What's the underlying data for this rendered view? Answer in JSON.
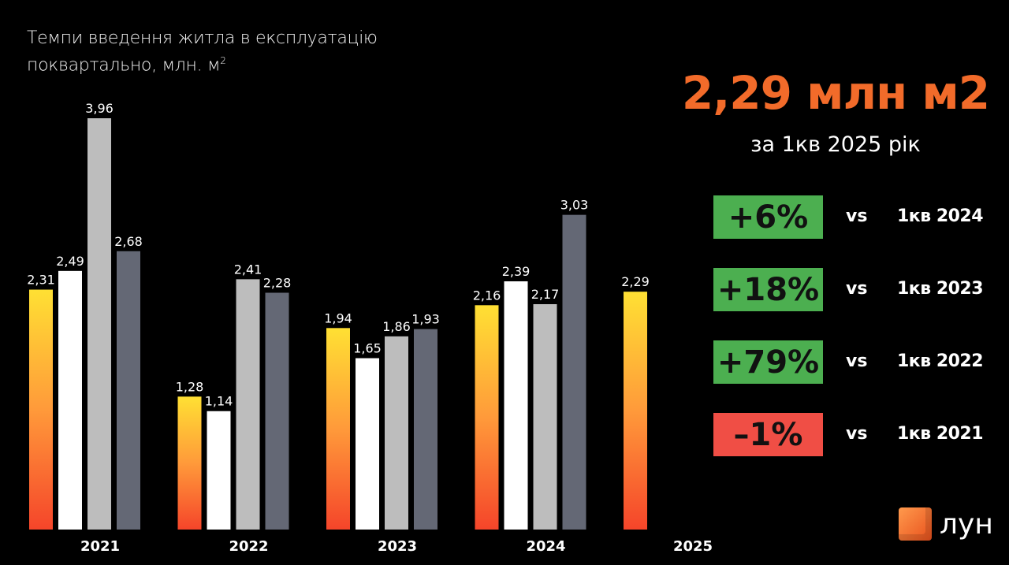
{
  "chart_data": {
    "type": "bar",
    "title": "Темпи введення житла в експлуатацію поквартально, млн. м²",
    "title_line1": "Темпи введення житла в експлуатацію",
    "title_line2": "поквартально, млн. м",
    "title_sup": "2",
    "categories": [
      "2021",
      "2022",
      "2023",
      "2024",
      "2025"
    ],
    "series": [
      {
        "quarter": 1,
        "values": [
          2.31,
          1.28,
          1.94,
          2.16,
          2.29
        ],
        "color": "gradient #ffe033 → #f5452a"
      },
      {
        "quarter": 2,
        "values": [
          2.49,
          1.14,
          1.65,
          2.39,
          null
        ],
        "color": "#ffffff"
      },
      {
        "quarter": 3,
        "values": [
          3.96,
          2.41,
          1.86,
          2.17,
          null
        ],
        "color": "#bdbdbd"
      },
      {
        "quarter": 4,
        "values": [
          2.68,
          2.28,
          1.93,
          3.03,
          null
        ],
        "color": "#646875"
      }
    ],
    "ylim": [
      0,
      4
    ],
    "grid": false,
    "data_labels_format": "comma-decimal"
  },
  "headline": {
    "value": "2,29 млн м2",
    "subtitle": "за 1кв 2025 рік",
    "color": "#f26b2a"
  },
  "comparisons": [
    {
      "change": "+6%",
      "vs": "vs",
      "period": "1кв 2024",
      "color": "#4caf50"
    },
    {
      "change": "+18%",
      "vs": "vs",
      "period": "1кв 2023",
      "color": "#4caf50"
    },
    {
      "change": "+79%",
      "vs": "vs",
      "period": "1кв 2022",
      "color": "#4caf50"
    },
    {
      "change": "–1%",
      "vs": "vs",
      "period": "1кв 2021",
      "color": "#f04e45"
    }
  ],
  "logo": {
    "text": "ЛУН",
    "icon": "cube-icon"
  }
}
